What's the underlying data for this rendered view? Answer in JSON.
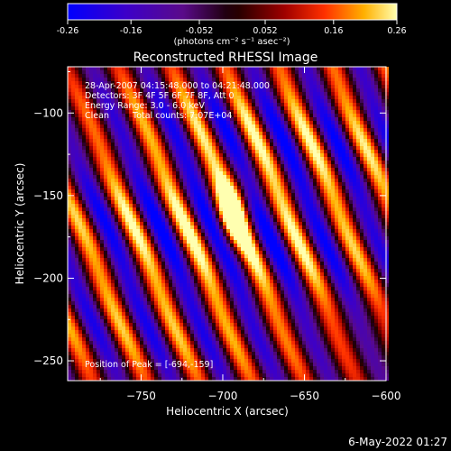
{
  "colorbar": {
    "ticks": [
      "-0.26",
      "-0.16",
      "-0.052",
      "0.052",
      "0.16",
      "0.26"
    ],
    "tick_values": [
      -0.26,
      -0.16,
      -0.052,
      0.052,
      0.16,
      0.26
    ],
    "range": [
      -0.26,
      0.26
    ],
    "units_label": "(photons cm⁻² s⁻¹ asec⁻²)"
  },
  "chart_data": {
    "type": "heatmap",
    "title": "Reconstructed RHESSI Image",
    "xlabel": "Heliocentric X (arcsec)",
    "ylabel": "Heliocentric Y (arcsec)",
    "xlim": [
      -795,
      -600
    ],
    "ylim": [
      -262,
      -72
    ],
    "x_ticks": [
      -750,
      -700,
      -650,
      -600
    ],
    "y_ticks": [
      -100,
      -150,
      -200,
      -250
    ],
    "annotations": [
      "28-Apr-2007 04:15:48.000 to 04:21:48.000",
      "Detectors: 3F 4F 5F 6F 7F 8F, Att 0",
      "Energy Range: 3.0 - 6.0 keV",
      "Clean",
      "Total counts: 7.07E+04"
    ],
    "peak_label": "Position of Peak = [-694,-159]",
    "peak": [
      -694,
      -159
    ],
    "fringe_angle_deg": 23,
    "fringe_spacing_arcsec": 30
  },
  "timestamp": "6-May-2022 01:27"
}
